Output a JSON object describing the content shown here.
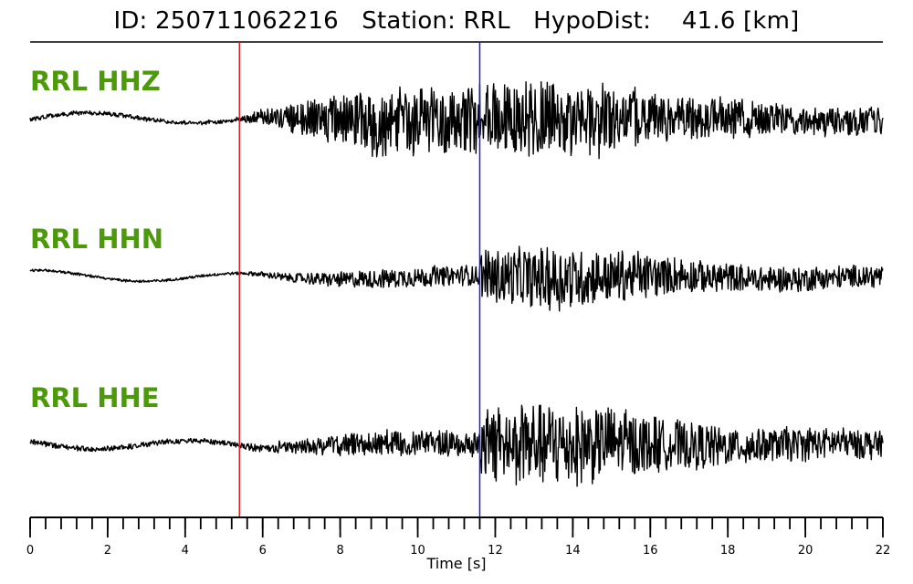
{
  "title": "ID: 250711062216   Station: RRL   HypoDist:    41.6 [km]",
  "colors": {
    "trace": "#000000",
    "label": "#4c9a0a",
    "p_pick": "#e02020",
    "s_pick": "#1a1adc"
  },
  "chart_data": {
    "type": "line",
    "title": "ID: 250711062216   Station: RRL   HypoDist:    41.6 [km]",
    "xlabel": "Time [s]",
    "ylabel": "",
    "xlim": [
      0,
      22
    ],
    "x_ticks": [
      0,
      2,
      4,
      6,
      8,
      10,
      12,
      14,
      16,
      18,
      20,
      22
    ],
    "x_minor_step": 0.4,
    "grid": false,
    "picks": [
      {
        "phase": "P",
        "time": 5.4,
        "color": "#e02020"
      },
      {
        "phase": "S",
        "time": 11.6,
        "color": "#1a1adc"
      }
    ],
    "series": [
      {
        "name": "RRL HHZ",
        "noise": 0.05,
        "p_amp": 0.75,
        "s_amp": 0.95,
        "seed": 11
      },
      {
        "name": "RRL HHN",
        "noise": 0.03,
        "p_amp": 0.22,
        "s_amp": 0.75,
        "seed": 23
      },
      {
        "name": "RRL HHE",
        "noise": 0.06,
        "p_amp": 0.28,
        "s_amp": 1.0,
        "seed": 37
      }
    ]
  }
}
